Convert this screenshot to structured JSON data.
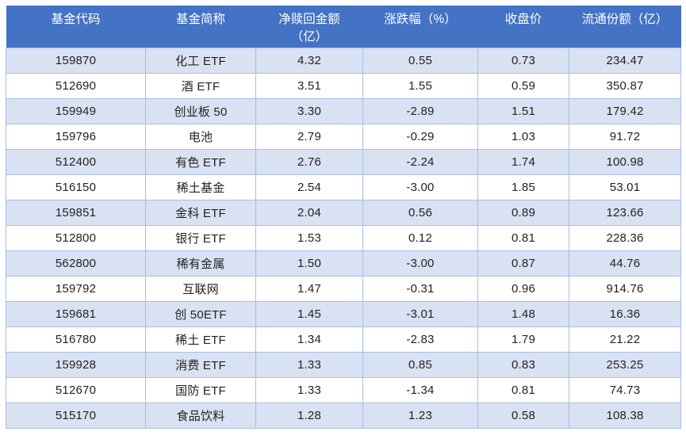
{
  "table": {
    "headers": [
      "基金代码",
      "基金简称",
      "净赎回金额\n（亿）",
      "涨跌幅（%）",
      "收盘价",
      "流通份额（亿）"
    ],
    "rows": [
      [
        "159870",
        "化工 ETF",
        "4.32",
        "0.55",
        "0.73",
        "234.47"
      ],
      [
        "512690",
        "酒 ETF",
        "3.51",
        "1.55",
        "0.59",
        "350.87"
      ],
      [
        "159949",
        "创业板 50",
        "3.30",
        "-2.89",
        "1.51",
        "179.42"
      ],
      [
        "159796",
        "电池",
        "2.79",
        "-0.29",
        "1.03",
        "91.72"
      ],
      [
        "512400",
        "有色 ETF",
        "2.76",
        "-2.24",
        "1.74",
        "100.98"
      ],
      [
        "516150",
        "稀土基金",
        "2.54",
        "-3.00",
        "1.85",
        "53.01"
      ],
      [
        "159851",
        "金科 ETF",
        "2.04",
        "0.56",
        "0.89",
        "123.66"
      ],
      [
        "512800",
        "银行 ETF",
        "1.53",
        "0.12",
        "0.81",
        "228.36"
      ],
      [
        "562800",
        "稀有金属",
        "1.50",
        "-3.00",
        "0.87",
        "44.76"
      ],
      [
        "159792",
        "互联网",
        "1.47",
        "-0.31",
        "0.96",
        "914.76"
      ],
      [
        "159681",
        "创 50ETF",
        "1.45",
        "-3.01",
        "1.48",
        "16.36"
      ],
      [
        "516780",
        "稀土 ETF",
        "1.34",
        "-2.83",
        "1.79",
        "21.22"
      ],
      [
        "159928",
        "消费 ETF",
        "1.33",
        "0.85",
        "0.83",
        "253.25"
      ],
      [
        "512670",
        "国防 ETF",
        "1.33",
        "-1.34",
        "0.81",
        "74.73"
      ],
      [
        "515170",
        "食品饮料",
        "1.28",
        "1.23",
        "0.58",
        "108.38"
      ]
    ],
    "column_names": [
      "fund-code",
      "fund-name",
      "net-redemption",
      "change-pct",
      "close-price",
      "circulating-shares"
    ],
    "colors": {
      "header_bg": "#4472C4",
      "header_text": "#FFFFFF",
      "banded_row_bg": "#D9E2F3",
      "plain_row_bg": "#FFFFFF",
      "grid_border": "#A8BEE2",
      "body_text": "#222222"
    }
  }
}
